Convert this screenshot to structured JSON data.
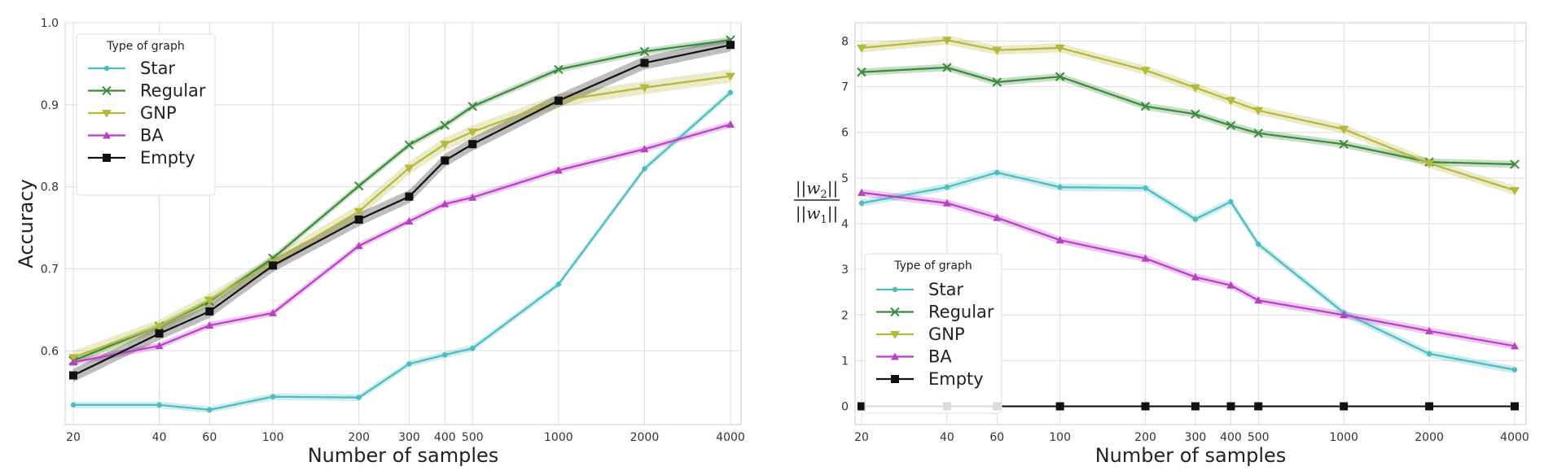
{
  "series_styles": [
    {
      "key": "star",
      "name": "Star",
      "color": "#4dbbc2",
      "marker": "dot"
    },
    {
      "key": "regular",
      "name": "Regular",
      "color": "#3a8a3a",
      "marker": "x"
    },
    {
      "key": "gnp",
      "name": "GNP",
      "color": "#b5b83a",
      "marker": "tri-down"
    },
    {
      "key": "ba",
      "name": "BA",
      "color": "#b93fc4",
      "marker": "tri-up"
    },
    {
      "key": "empty",
      "name": "Empty",
      "color": "#111111",
      "marker": "square"
    }
  ],
  "chart_data": [
    {
      "type": "line",
      "title": "",
      "xlabel": "Number of samples",
      "ylabel": "Accuracy",
      "xscale": "log",
      "x": [
        20,
        40,
        60,
        100,
        200,
        300,
        400,
        500,
        1000,
        2000,
        4000
      ],
      "x_tick_labels": [
        "20",
        "40",
        "60",
        "100",
        "200",
        "300",
        "400",
        "500",
        "1000",
        "2000",
        "4000"
      ],
      "y_ticks": [
        0.6,
        0.7,
        0.8,
        0.9,
        1.0
      ],
      "y_tick_labels": [
        "0.6",
        "0.7",
        "0.8",
        "0.9",
        "1.0"
      ],
      "ylim": [
        0.51,
        1.0
      ],
      "grid": true,
      "legend": {
        "title": "Type of graph",
        "placement": "top-left"
      },
      "series": [
        {
          "name": "Star",
          "values": [
            0.534,
            0.534,
            0.528,
            0.544,
            0.543,
            0.584,
            0.595,
            0.603,
            0.681,
            0.822,
            0.915
          ],
          "band": 0.004
        },
        {
          "name": "Regular",
          "values": [
            0.588,
            0.63,
            0.66,
            0.713,
            0.801,
            0.851,
            0.875,
            0.898,
            0.943,
            0.965,
            0.979
          ],
          "band": 0.004
        },
        {
          "name": "GNP",
          "values": [
            0.592,
            0.63,
            0.662,
            0.708,
            0.77,
            0.823,
            0.852,
            0.867,
            0.905,
            0.921,
            0.935
          ],
          "band": 0.008
        },
        {
          "name": "BA",
          "values": [
            0.586,
            0.606,
            0.631,
            0.646,
            0.728,
            0.758,
            0.779,
            0.787,
            0.82,
            0.846,
            0.876
          ],
          "band": 0.004
        },
        {
          "name": "Empty",
          "values": [
            0.57,
            0.621,
            0.648,
            0.704,
            0.76,
            0.788,
            0.832,
            0.852,
            0.905,
            0.951,
            0.973
          ],
          "band": 0.008
        }
      ]
    },
    {
      "type": "line",
      "title": "",
      "xlabel": "Number of samples",
      "ylabel": "||w2|| / ||w1||",
      "ylabel_parts": {
        "num_base": "||w",
        "num_sub": "2",
        "num_end": "||",
        "den_base": "||w",
        "den_sub": "1",
        "den_end": "||"
      },
      "xscale": "log",
      "x": [
        20,
        40,
        60,
        100,
        200,
        300,
        400,
        500,
        1000,
        2000,
        4000
      ],
      "x_tick_labels": [
        "20",
        "40",
        "60",
        "100",
        "200",
        "300",
        "400",
        "500",
        "1000",
        "2000",
        "4000"
      ],
      "y_ticks": [
        0,
        1,
        2,
        3,
        4,
        5,
        6,
        7,
        8
      ],
      "y_tick_labels": [
        "0",
        "1",
        "2",
        "3",
        "4",
        "5",
        "6",
        "7",
        "8"
      ],
      "ylim": [
        -0.4,
        8.4
      ],
      "grid": true,
      "legend": {
        "title": "Type of graph",
        "placement": "bottom-left"
      },
      "series": [
        {
          "name": "Star",
          "values": [
            4.45,
            4.8,
            5.12,
            4.8,
            4.78,
            4.1,
            4.48,
            3.55,
            2.05,
            1.15,
            0.8
          ],
          "band": 0.08
        },
        {
          "name": "Regular",
          "values": [
            7.32,
            7.42,
            7.1,
            7.22,
            6.57,
            6.4,
            6.15,
            5.98,
            5.74,
            5.35,
            5.3
          ],
          "band": 0.08
        },
        {
          "name": "GNP",
          "values": [
            7.85,
            8.02,
            7.8,
            7.85,
            7.36,
            6.98,
            6.7,
            6.48,
            6.07,
            5.32,
            4.73
          ],
          "band": 0.1
        },
        {
          "name": "BA",
          "values": [
            4.68,
            4.45,
            4.13,
            3.64,
            3.24,
            2.83,
            2.65,
            2.32,
            2.0,
            1.65,
            1.32
          ],
          "band": 0.08
        },
        {
          "name": "Empty",
          "values": [
            0,
            0,
            0,
            0,
            0,
            0,
            0,
            0,
            0,
            0,
            0
          ],
          "band": 0
        }
      ]
    }
  ]
}
